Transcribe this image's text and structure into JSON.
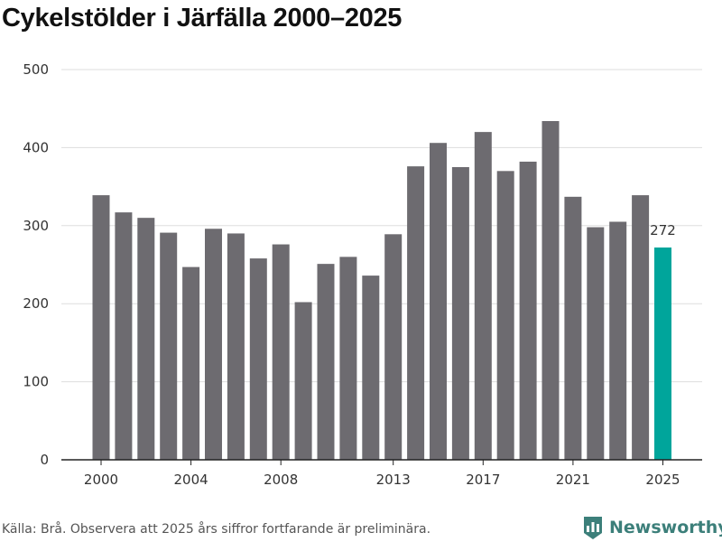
{
  "chart_data": {
    "type": "bar",
    "title": "Cykelstölder i Järfälla 2000–2025",
    "x": [
      2000,
      2001,
      2002,
      2003,
      2004,
      2005,
      2006,
      2007,
      2008,
      2009,
      2010,
      2011,
      2012,
      2013,
      2014,
      2015,
      2016,
      2017,
      2018,
      2019,
      2020,
      2021,
      2022,
      2023,
      2024,
      2025
    ],
    "values": [
      339,
      317,
      310,
      291,
      247,
      296,
      290,
      258,
      276,
      202,
      251,
      260,
      236,
      289,
      376,
      406,
      375,
      420,
      370,
      382,
      434,
      337,
      298,
      305,
      339,
      272
    ],
    "ylim": [
      0,
      500
    ],
    "yticks": [
      0,
      100,
      200,
      300,
      400,
      500
    ],
    "xticks": [
      2000,
      2004,
      2008,
      2013,
      2017,
      2021,
      2025
    ],
    "highlight": {
      "year": 2025,
      "label": "272"
    },
    "colors": {
      "bar": "#6d6b70",
      "highlight": "#00a59b",
      "grid": "#dddddd",
      "axis": "#222222"
    },
    "grid": true
  },
  "footer": {
    "source": "Källa: Brå. Observera att 2025 års siffror fortfarande är preliminära.",
    "brand": "Newsworthy",
    "brand_icon": "newsworthy-logo-icon"
  }
}
